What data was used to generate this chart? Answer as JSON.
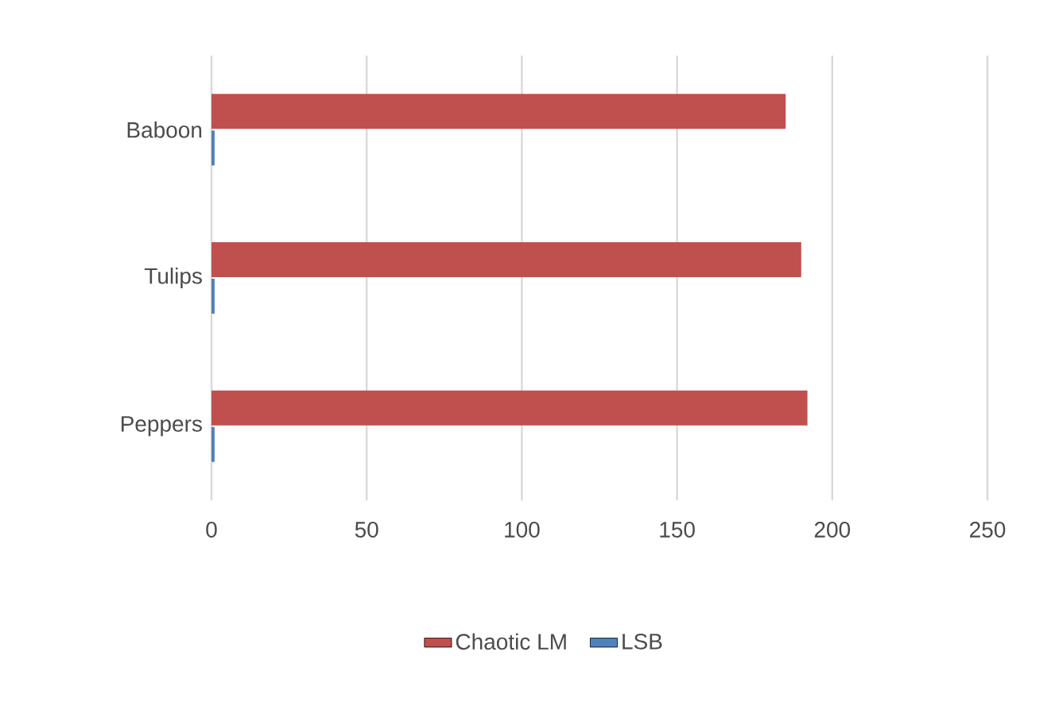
{
  "chart_data": {
    "type": "bar",
    "orientation": "horizontal",
    "categories": [
      "Baboon",
      "Tulips",
      "Peppers"
    ],
    "series": [
      {
        "name": "Chaotic LM",
        "color": "#c0504d",
        "values": [
          185,
          190,
          192
        ]
      },
      {
        "name": "LSB",
        "color": "#4f81bd",
        "values": [
          1,
          1,
          1
        ]
      }
    ],
    "xlim": [
      0,
      250
    ],
    "xticks": [
      0,
      50,
      100,
      150,
      200,
      250
    ],
    "grid": "x",
    "legend": "bottom"
  }
}
